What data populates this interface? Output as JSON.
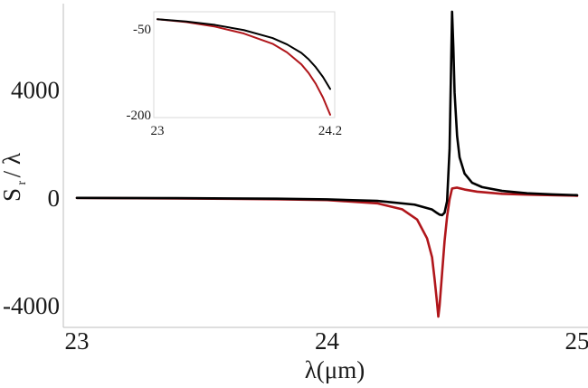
{
  "chart_data": [
    {
      "type": "line",
      "title": "",
      "xlabel": "λ(μm)",
      "ylabel": "S r / λ",
      "xlim": [
        23,
        25
      ],
      "ylim": [
        -4800,
        7200
      ],
      "x_ticks": [
        "23",
        "24",
        "25"
      ],
      "y_ticks": [
        "4000",
        "0",
        "-4000"
      ],
      "x_tick_values": [
        23,
        24,
        25
      ],
      "y_tick_values": [
        4000,
        0,
        -4000
      ],
      "grid": false,
      "series": [
        {
          "color": "#000000",
          "x": [
            23.0,
            23.4,
            23.8,
            24.0,
            24.2,
            24.35,
            24.42,
            24.44,
            24.45,
            24.46,
            24.47,
            24.48,
            24.49,
            24.5,
            24.505,
            24.51,
            24.52,
            24.53,
            24.55,
            24.58,
            24.62,
            24.7,
            24.8,
            24.9,
            25.0
          ],
          "values": [
            0,
            -10,
            -30,
            -55,
            -110,
            -250,
            -430,
            -560,
            -620,
            -640,
            -550,
            -120,
            1800,
            6900,
            5600,
            3900,
            2300,
            1500,
            900,
            560,
            400,
            260,
            170,
            130,
            100
          ]
        },
        {
          "color": "#b0161b",
          "x": [
            23.0,
            23.4,
            23.8,
            24.0,
            24.2,
            24.3,
            24.36,
            24.4,
            24.42,
            24.43,
            24.44,
            24.445,
            24.45,
            24.46,
            24.47,
            24.48,
            24.49,
            24.5,
            24.52,
            24.55,
            24.6,
            24.7,
            24.8,
            24.9,
            25.0
          ],
          "values": [
            0,
            -20,
            -50,
            -80,
            -200,
            -420,
            -800,
            -1500,
            -2200,
            -3000,
            -3900,
            -4400,
            -4000,
            -2800,
            -1600,
            -700,
            -50,
            350,
            380,
            310,
            230,
            150,
            120,
            100,
            80
          ]
        }
      ]
    },
    {
      "type": "line",
      "title": "",
      "xlabel": "",
      "ylabel": "",
      "xlim": [
        23,
        24.2
      ],
      "ylim": [
        -205,
        -20
      ],
      "x_ticks": [
        "23",
        "24.2"
      ],
      "y_ticks": [
        "-50",
        "-200"
      ],
      "x_tick_values": [
        23,
        24.2
      ],
      "y_tick_values": [
        -50,
        -200
      ],
      "grid": false,
      "series": [
        {
          "color": "#000000",
          "x": [
            23.0,
            23.2,
            23.4,
            23.6,
            23.8,
            23.9,
            24.0,
            24.05,
            24.1,
            24.15,
            24.2
          ],
          "values": [
            -33,
            -37,
            -43,
            -52,
            -66,
            -77,
            -92,
            -103,
            -117,
            -134,
            -155
          ]
        },
        {
          "color": "#b0161b",
          "x": [
            23.0,
            23.2,
            23.4,
            23.6,
            23.8,
            23.9,
            24.0,
            24.05,
            24.1,
            24.15,
            24.2
          ],
          "values": [
            -33,
            -38,
            -46,
            -58,
            -76,
            -91,
            -112,
            -127,
            -146,
            -170,
            -200
          ]
        }
      ]
    }
  ]
}
